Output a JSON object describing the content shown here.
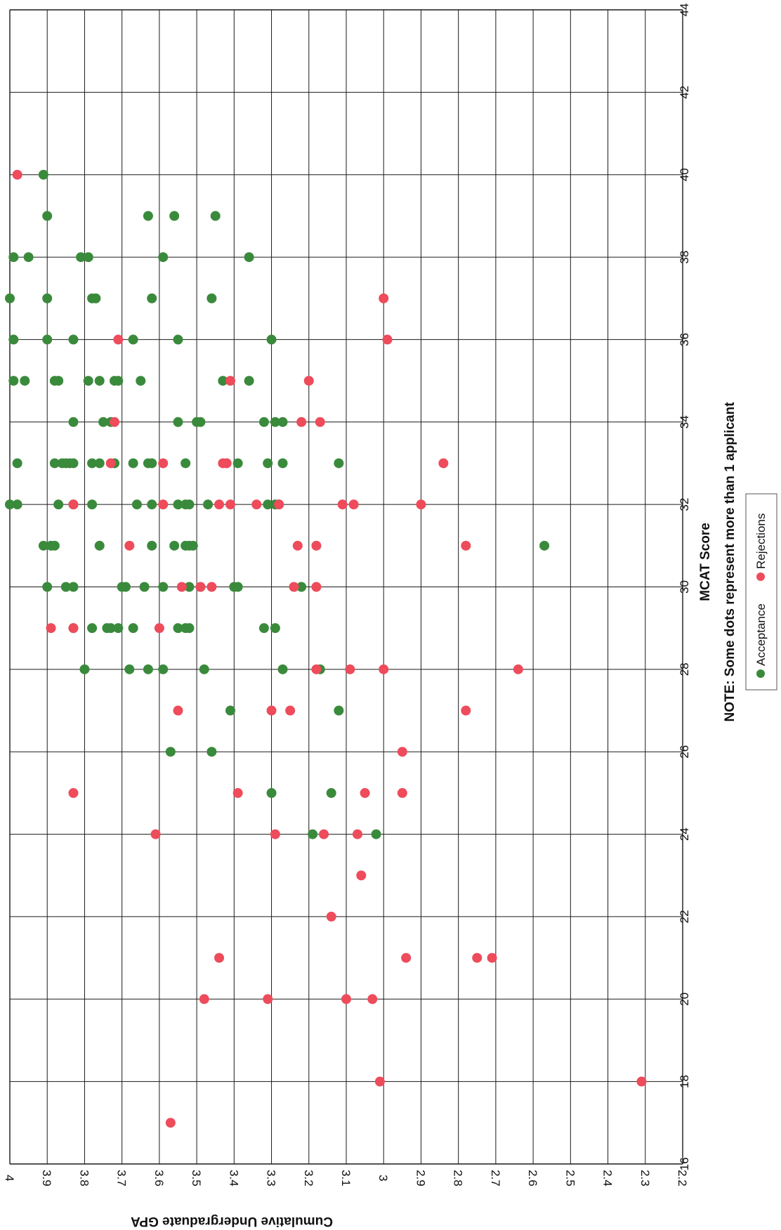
{
  "chart_data": {
    "type": "scatter",
    "xlabel": "MCAT Score",
    "ylabel": "Cumulative Undergraduate GPA",
    "note": "NOTE:  Some dots represent more than 1 applicant",
    "xlim": [
      16,
      44
    ],
    "ylim": [
      2.2,
      4.0
    ],
    "x_ticks": [
      "16",
      "18",
      "20",
      "22",
      "24",
      "26",
      "28",
      "30",
      "32",
      "34",
      "36",
      "38",
      "40",
      "42",
      "44"
    ],
    "y_ticks": [
      "4",
      "3.9",
      "3.8",
      "3.7",
      "3.6",
      "3.5",
      "3.4",
      "3.3",
      "3.2",
      "3.1",
      "3",
      "2.9",
      "2.8",
      "2.7",
      "2.6",
      "2.5",
      "2.4",
      "2.3",
      "2.2"
    ],
    "grid": true,
    "legend_position": "bottom-right",
    "colors": {
      "Acceptance": "#3a8a3c",
      "Rejections": "#ee4b5b"
    },
    "series": [
      {
        "name": "Acceptance",
        "points": [
          [
            40,
            3.91
          ],
          [
            39,
            3.9
          ],
          [
            39,
            3.63
          ],
          [
            39,
            3.56
          ],
          [
            39,
            3.45
          ],
          [
            38,
            3.99
          ],
          [
            38,
            3.95
          ],
          [
            38,
            3.81
          ],
          [
            38,
            3.79
          ],
          [
            38,
            3.59
          ],
          [
            38,
            3.36
          ],
          [
            37,
            4.0
          ],
          [
            37,
            3.9
          ],
          [
            37,
            3.78
          ],
          [
            37,
            3.77
          ],
          [
            37,
            3.62
          ],
          [
            37,
            3.46
          ],
          [
            36,
            3.99
          ],
          [
            36,
            3.9
          ],
          [
            36,
            3.83
          ],
          [
            36,
            3.67
          ],
          [
            36,
            3.55
          ],
          [
            36,
            3.3
          ],
          [
            35,
            3.99
          ],
          [
            35,
            3.96
          ],
          [
            35,
            3.88
          ],
          [
            35,
            3.87
          ],
          [
            35,
            3.79
          ],
          [
            35,
            3.76
          ],
          [
            35,
            3.72
          ],
          [
            35,
            3.71
          ],
          [
            35,
            3.65
          ],
          [
            35,
            3.43
          ],
          [
            35,
            3.36
          ],
          [
            34,
            3.83
          ],
          [
            34,
            3.75
          ],
          [
            34,
            3.73
          ],
          [
            34,
            3.55
          ],
          [
            34,
            3.5
          ],
          [
            34,
            3.49
          ],
          [
            34,
            3.32
          ],
          [
            34,
            3.29
          ],
          [
            34,
            3.27
          ],
          [
            33,
            3.98
          ],
          [
            33,
            3.88
          ],
          [
            33,
            3.86
          ],
          [
            33,
            3.85
          ],
          [
            33,
            3.84
          ],
          [
            33,
            3.83
          ],
          [
            33,
            3.78
          ],
          [
            33,
            3.76
          ],
          [
            33,
            3.72
          ],
          [
            33,
            3.67
          ],
          [
            33,
            3.63
          ],
          [
            33,
            3.62
          ],
          [
            33,
            3.53
          ],
          [
            33,
            3.42
          ],
          [
            33,
            3.39
          ],
          [
            33,
            3.31
          ],
          [
            33,
            3.27
          ],
          [
            33,
            3.12
          ],
          [
            32,
            4.0
          ],
          [
            32,
            3.98
          ],
          [
            32,
            3.87
          ],
          [
            32,
            3.83
          ],
          [
            32,
            3.78
          ],
          [
            32,
            3.66
          ],
          [
            32,
            3.62
          ],
          [
            32,
            3.55
          ],
          [
            32,
            3.53
          ],
          [
            32,
            3.52
          ],
          [
            32,
            3.47
          ],
          [
            32,
            3.31
          ],
          [
            32,
            3.29
          ],
          [
            32,
            3.28
          ],
          [
            31,
            3.91
          ],
          [
            31,
            3.89
          ],
          [
            31,
            3.88
          ],
          [
            31,
            3.76
          ],
          [
            31,
            3.62
          ],
          [
            31,
            3.56
          ],
          [
            31,
            3.53
          ],
          [
            31,
            3.52
          ],
          [
            31,
            3.51
          ],
          [
            31,
            2.57
          ],
          [
            30,
            3.9
          ],
          [
            30,
            3.85
          ],
          [
            30,
            3.83
          ],
          [
            30,
            3.7
          ],
          [
            30,
            3.69
          ],
          [
            30,
            3.64
          ],
          [
            30,
            3.59
          ],
          [
            30,
            3.52
          ],
          [
            30,
            3.49
          ],
          [
            30,
            3.4
          ],
          [
            30,
            3.39
          ],
          [
            30,
            3.22
          ],
          [
            29,
            3.83
          ],
          [
            29,
            3.78
          ],
          [
            29,
            3.74
          ],
          [
            29,
            3.73
          ],
          [
            29,
            3.71
          ],
          [
            29,
            3.67
          ],
          [
            29,
            3.55
          ],
          [
            29,
            3.53
          ],
          [
            29,
            3.52
          ],
          [
            29,
            3.32
          ],
          [
            29,
            3.29
          ],
          [
            28,
            3.8
          ],
          [
            28,
            3.68
          ],
          [
            28,
            3.63
          ],
          [
            28,
            3.59
          ],
          [
            28,
            3.48
          ],
          [
            28,
            3.27
          ],
          [
            28,
            3.17
          ],
          [
            27,
            3.41
          ],
          [
            27,
            3.12
          ],
          [
            26,
            3.57
          ],
          [
            26,
            3.46
          ],
          [
            25,
            3.3
          ],
          [
            25,
            3.14
          ],
          [
            24,
            3.19
          ],
          [
            24,
            3.02
          ]
        ]
      },
      {
        "name": "Rejections",
        "points": [
          [
            40,
            3.98
          ],
          [
            37,
            3.0
          ],
          [
            36,
            3.71
          ],
          [
            36,
            2.99
          ],
          [
            35,
            3.41
          ],
          [
            35,
            3.2
          ],
          [
            34,
            3.72
          ],
          [
            34,
            3.22
          ],
          [
            34,
            3.17
          ],
          [
            33,
            3.73
          ],
          [
            33,
            3.59
          ],
          [
            33,
            3.43
          ],
          [
            33,
            3.42
          ],
          [
            33,
            2.84
          ],
          [
            32,
            3.83
          ],
          [
            32,
            3.59
          ],
          [
            32,
            3.44
          ],
          [
            32,
            3.41
          ],
          [
            32,
            3.34
          ],
          [
            32,
            3.28
          ],
          [
            32,
            3.11
          ],
          [
            32,
            3.08
          ],
          [
            32,
            2.9
          ],
          [
            31,
            3.68
          ],
          [
            31,
            3.23
          ],
          [
            31,
            3.18
          ],
          [
            31,
            2.78
          ],
          [
            30,
            3.54
          ],
          [
            30,
            3.49
          ],
          [
            30,
            3.46
          ],
          [
            30,
            3.24
          ],
          [
            30,
            3.18
          ],
          [
            29,
            3.89
          ],
          [
            29,
            3.83
          ],
          [
            29,
            3.6
          ],
          [
            28,
            3.18
          ],
          [
            28,
            3.09
          ],
          [
            28,
            3.0
          ],
          [
            28,
            2.64
          ],
          [
            27,
            3.55
          ],
          [
            27,
            3.3
          ],
          [
            27,
            3.25
          ],
          [
            27,
            2.78
          ],
          [
            26,
            2.95
          ],
          [
            25,
            3.83
          ],
          [
            25,
            3.39
          ],
          [
            25,
            3.05
          ],
          [
            25,
            2.95
          ],
          [
            24,
            3.61
          ],
          [
            24,
            3.29
          ],
          [
            24,
            3.16
          ],
          [
            24,
            3.07
          ],
          [
            23,
            3.06
          ],
          [
            22,
            3.14
          ],
          [
            21,
            3.44
          ],
          [
            21,
            2.94
          ],
          [
            21,
            2.75
          ],
          [
            21,
            2.71
          ],
          [
            20,
            3.48
          ],
          [
            20,
            3.31
          ],
          [
            20,
            3.1
          ],
          [
            20,
            3.03
          ],
          [
            18,
            3.01
          ],
          [
            18,
            2.31
          ],
          [
            17,
            3.57
          ]
        ]
      }
    ]
  }
}
